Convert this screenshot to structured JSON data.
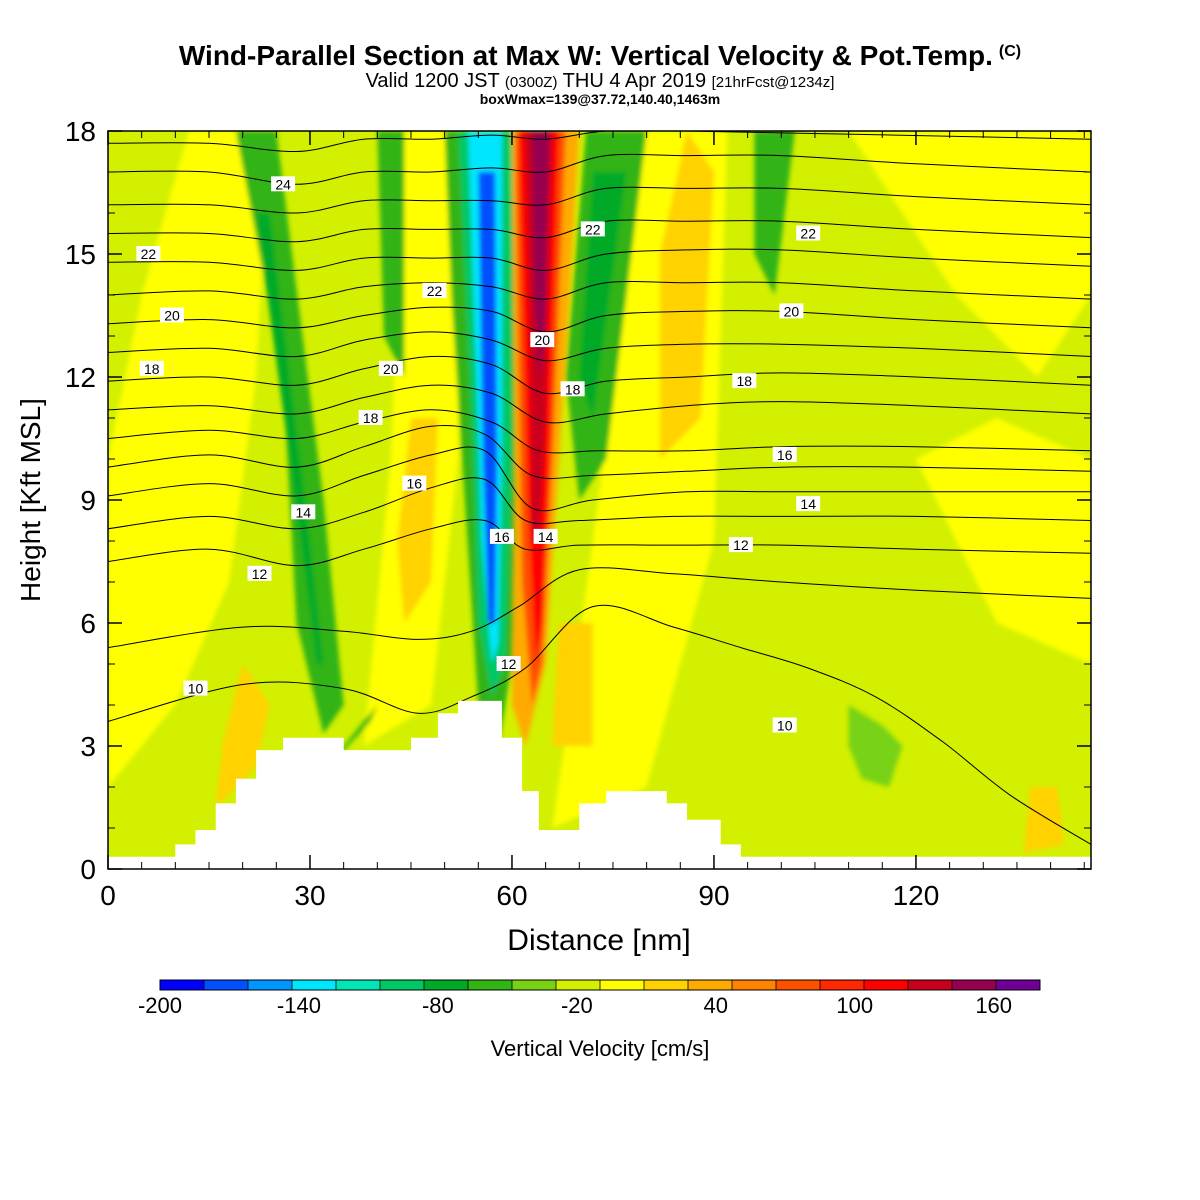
{
  "title": {
    "main": "Wind-Parallel Section at Max W: Vertical Velocity & Pot.Temp.",
    "copyright": "(C)",
    "valid_prefix": "Valid 1200 JST",
    "utc": "(0300Z)",
    "valid_date": "THU 4 Apr 2019",
    "forecast": "[21hrFcst@1234z]",
    "box_info": "boxWmax=139@37.72,140.40,1463m"
  },
  "chart_data": {
    "type": "heatmap",
    "xlabel": "Distance [nm]",
    "ylabel": "Height [Kft MSL]",
    "xlim": [
      0,
      146
    ],
    "ylim": [
      0,
      18
    ],
    "x_ticks": [
      0,
      30,
      60,
      90,
      120
    ],
    "y_ticks": [
      0,
      3,
      6,
      9,
      12,
      15,
      18
    ],
    "grid": false,
    "colorbar": {
      "label": "Vertical Velocity [cm/s]",
      "bounds": [
        -200,
        180
      ],
      "step": 20,
      "tick_values": [
        -200,
        -140,
        -80,
        -20,
        40,
        100,
        160
      ],
      "colors": [
        "#0000ff",
        "#0050ff",
        "#0096ff",
        "#00e6ff",
        "#00e6b4",
        "#00c864",
        "#00aa28",
        "#32b414",
        "#78d214",
        "#d2f000",
        "#ffff00",
        "#ffd200",
        "#ffaa00",
        "#ff8200",
        "#ff5000",
        "#ff2800",
        "#ff0000",
        "#c8001e",
        "#960050",
        "#6e0096"
      ]
    },
    "terrain_profile_kft": [
      [
        0,
        0.3
      ],
      [
        10,
        0.3
      ],
      [
        10,
        0.6
      ],
      [
        13,
        0.6
      ],
      [
        13,
        0.95
      ],
      [
        16,
        0.95
      ],
      [
        16,
        1.6
      ],
      [
        19,
        1.6
      ],
      [
        19,
        2.2
      ],
      [
        22,
        2.2
      ],
      [
        22,
        2.9
      ],
      [
        26,
        2.9
      ],
      [
        26,
        3.2
      ],
      [
        35,
        3.2
      ],
      [
        35,
        2.9
      ],
      [
        45,
        2.9
      ],
      [
        45,
        3.2
      ],
      [
        49,
        3.2
      ],
      [
        49,
        3.8
      ],
      [
        52,
        3.8
      ],
      [
        52,
        4.1
      ],
      [
        58.5,
        4.1
      ],
      [
        58.5,
        3.2
      ],
      [
        61.5,
        3.2
      ],
      [
        61.5,
        1.9
      ],
      [
        64,
        1.9
      ],
      [
        64,
        0.95
      ],
      [
        70,
        0.95
      ],
      [
        70,
        1.6
      ],
      [
        74,
        1.6
      ],
      [
        74,
        1.9
      ],
      [
        83,
        1.9
      ],
      [
        83,
        1.6
      ],
      [
        86,
        1.6
      ],
      [
        86,
        1.2
      ],
      [
        91,
        1.2
      ],
      [
        91,
        0.6
      ],
      [
        94,
        0.6
      ],
      [
        94,
        0.3
      ],
      [
        146,
        0.3
      ]
    ],
    "velocity_features": [
      {
        "kind": "updraft",
        "x": 64.5,
        "z": 14.5,
        "value_cm_s": 175
      },
      {
        "kind": "downdraft",
        "x": 57.5,
        "z": 11.5,
        "value_cm_s": -150
      },
      {
        "kind": "downdraft",
        "x": 31,
        "z": 10,
        "value_cm_s": -65
      },
      {
        "kind": "updraft",
        "x": 87,
        "z": 15,
        "value_cm_s": 45
      },
      {
        "kind": "downdraft",
        "x": 115,
        "z": 3.4,
        "value_cm_s": -40
      }
    ],
    "pot_temp_contours": [
      {
        "level": 10,
        "points": [
          [
            0,
            3.6
          ],
          [
            20,
            4.5
          ],
          [
            35,
            4.4
          ],
          [
            46,
            3.8
          ],
          [
            54,
            4.2
          ],
          [
            62,
            4.9
          ],
          [
            72,
            6.4
          ],
          [
            84,
            5.9
          ],
          [
            94,
            5.4
          ],
          [
            104,
            4.9
          ],
          [
            114,
            4.2
          ],
          [
            124,
            3.1
          ],
          [
            134,
            1.8
          ],
          [
            146,
            0.6
          ]
        ]
      },
      {
        "level": 11,
        "points": [
          [
            0,
            5.4
          ],
          [
            20,
            5.9
          ],
          [
            35,
            5.8
          ],
          [
            46,
            5.6
          ],
          [
            54,
            5.8
          ],
          [
            61,
            6.4
          ],
          [
            70,
            7.3
          ],
          [
            84,
            7.2
          ],
          [
            100,
            7.0
          ],
          [
            120,
            6.8
          ],
          [
            146,
            6.6
          ]
        ]
      },
      {
        "level": 12,
        "points": [
          [
            0,
            7.5
          ],
          [
            15,
            7.8
          ],
          [
            28,
            7.4
          ],
          [
            38,
            7.8
          ],
          [
            48,
            8.3
          ],
          [
            56,
            8.5
          ],
          [
            62,
            7.8
          ],
          [
            70,
            7.9
          ],
          [
            84,
            7.9
          ],
          [
            100,
            7.9
          ],
          [
            120,
            7.8
          ],
          [
            146,
            7.7
          ]
        ]
      },
      {
        "level": 13,
        "points": [
          [
            0,
            8.3
          ],
          [
            15,
            8.6
          ],
          [
            28,
            8.3
          ],
          [
            38,
            8.7
          ],
          [
            48,
            9.3
          ],
          [
            56,
            9.5
          ],
          [
            62,
            8.5
          ],
          [
            70,
            8.5
          ],
          [
            84,
            8.6
          ],
          [
            100,
            8.6
          ],
          [
            120,
            8.6
          ],
          [
            146,
            8.5
          ]
        ]
      },
      {
        "level": 14,
        "points": [
          [
            0,
            9.1
          ],
          [
            15,
            9.4
          ],
          [
            28,
            9.1
          ],
          [
            38,
            9.6
          ],
          [
            48,
            10.1
          ],
          [
            56,
            10.2
          ],
          [
            63,
            8.8
          ],
          [
            72,
            9.0
          ],
          [
            86,
            9.2
          ],
          [
            100,
            9.2
          ],
          [
            120,
            9.2
          ],
          [
            146,
            9.2
          ]
        ]
      },
      {
        "level": 15,
        "points": [
          [
            0,
            9.8
          ],
          [
            15,
            10.1
          ],
          [
            28,
            9.8
          ],
          [
            38,
            10.3
          ],
          [
            48,
            10.8
          ],
          [
            56,
            10.6
          ],
          [
            63,
            9.6
          ],
          [
            72,
            9.6
          ],
          [
            86,
            9.7
          ],
          [
            100,
            9.8
          ],
          [
            120,
            9.8
          ],
          [
            146,
            9.7
          ]
        ]
      },
      {
        "level": 16,
        "points": [
          [
            0,
            10.5
          ],
          [
            15,
            10.7
          ],
          [
            28,
            10.5
          ],
          [
            38,
            10.9
          ],
          [
            48,
            11.2
          ],
          [
            57,
            10.9
          ],
          [
            64,
            10.2
          ],
          [
            73,
            10.2
          ],
          [
            86,
            10.2
          ],
          [
            100,
            10.3
          ],
          [
            120,
            10.3
          ],
          [
            146,
            10.2
          ]
        ]
      },
      {
        "level": 17,
        "points": [
          [
            0,
            11.2
          ],
          [
            15,
            11.3
          ],
          [
            28,
            11.1
          ],
          [
            38,
            11.5
          ],
          [
            48,
            11.8
          ],
          [
            57,
            11.6
          ],
          [
            65,
            10.9
          ],
          [
            74,
            11.1
          ],
          [
            86,
            11.3
          ],
          [
            100,
            11.4
          ],
          [
            120,
            11.3
          ],
          [
            146,
            11.1
          ]
        ]
      },
      {
        "level": 18,
        "points": [
          [
            0,
            11.9
          ],
          [
            15,
            12.0
          ],
          [
            28,
            11.8
          ],
          [
            38,
            12.2
          ],
          [
            48,
            12.5
          ],
          [
            57,
            12.3
          ],
          [
            65,
            11.6
          ],
          [
            74,
            11.9
          ],
          [
            86,
            12.0
          ],
          [
            100,
            12.1
          ],
          [
            120,
            12.0
          ],
          [
            146,
            11.8
          ]
        ]
      },
      {
        "level": 19,
        "points": [
          [
            0,
            12.6
          ],
          [
            15,
            12.7
          ],
          [
            28,
            12.5
          ],
          [
            38,
            12.9
          ],
          [
            48,
            13.1
          ],
          [
            57,
            12.9
          ],
          [
            65,
            12.4
          ],
          [
            74,
            12.7
          ],
          [
            86,
            12.8
          ],
          [
            100,
            12.8
          ],
          [
            120,
            12.7
          ],
          [
            146,
            12.5
          ]
        ]
      },
      {
        "level": 20,
        "points": [
          [
            0,
            13.3
          ],
          [
            15,
            13.4
          ],
          [
            28,
            13.2
          ],
          [
            38,
            13.5
          ],
          [
            48,
            13.7
          ],
          [
            57,
            13.6
          ],
          [
            65,
            13.1
          ],
          [
            74,
            13.5
          ],
          [
            86,
            13.6
          ],
          [
            100,
            13.6
          ],
          [
            120,
            13.4
          ],
          [
            146,
            13.2
          ]
        ]
      },
      {
        "level": 21,
        "points": [
          [
            0,
            14.0
          ],
          [
            15,
            14.1
          ],
          [
            28,
            13.9
          ],
          [
            38,
            14.2
          ],
          [
            48,
            14.3
          ],
          [
            57,
            14.2
          ],
          [
            65,
            13.9
          ],
          [
            74,
            14.3
          ],
          [
            86,
            14.3
          ],
          [
            100,
            14.3
          ],
          [
            120,
            14.1
          ],
          [
            146,
            13.9
          ]
        ]
      },
      {
        "level": 22,
        "points": [
          [
            0,
            14.8
          ],
          [
            15,
            14.8
          ],
          [
            28,
            14.6
          ],
          [
            38,
            14.9
          ],
          [
            48,
            14.9
          ],
          [
            57,
            14.9
          ],
          [
            65,
            14.6
          ],
          [
            74,
            15.0
          ],
          [
            86,
            15.1
          ],
          [
            100,
            15.1
          ],
          [
            120,
            14.9
          ],
          [
            146,
            14.7
          ]
        ]
      },
      {
        "level": 23,
        "points": [
          [
            0,
            15.5
          ],
          [
            15,
            15.5
          ],
          [
            28,
            15.3
          ],
          [
            38,
            15.6
          ],
          [
            48,
            15.6
          ],
          [
            57,
            15.6
          ],
          [
            65,
            15.4
          ],
          [
            74,
            15.8
          ],
          [
            86,
            15.8
          ],
          [
            100,
            15.8
          ],
          [
            120,
            15.6
          ],
          [
            146,
            15.4
          ]
        ]
      },
      {
        "level": 24,
        "points": [
          [
            0,
            16.2
          ],
          [
            15,
            16.2
          ],
          [
            28,
            16.0
          ],
          [
            38,
            16.3
          ],
          [
            48,
            16.3
          ],
          [
            57,
            16.3
          ],
          [
            65,
            16.2
          ],
          [
            74,
            16.6
          ],
          [
            86,
            16.6
          ],
          [
            100,
            16.6
          ],
          [
            120,
            16.4
          ],
          [
            146,
            16.2
          ]
        ]
      },
      {
        "level": 25,
        "points": [
          [
            0,
            17.0
          ],
          [
            15,
            17.0
          ],
          [
            28,
            16.7
          ],
          [
            38,
            17.0
          ],
          [
            48,
            17.0
          ],
          [
            57,
            17.1
          ],
          [
            65,
            17.0
          ],
          [
            74,
            17.4
          ],
          [
            86,
            17.4
          ],
          [
            100,
            17.4
          ],
          [
            120,
            17.2
          ],
          [
            146,
            17.0
          ]
        ]
      },
      {
        "level": 26,
        "points": [
          [
            0,
            17.7
          ],
          [
            15,
            17.7
          ],
          [
            28,
            17.5
          ],
          [
            38,
            17.8
          ],
          [
            48,
            17.8
          ],
          [
            57,
            17.9
          ],
          [
            65,
            17.8
          ],
          [
            74,
            18.0
          ],
          [
            86,
            18.0
          ],
          [
            146,
            17.8
          ]
        ]
      }
    ],
    "contour_labels": [
      {
        "text": "24",
        "x": 26,
        "z": 16.7
      },
      {
        "text": "22",
        "x": 6,
        "z": 15.0
      },
      {
        "text": "20",
        "x": 9.5,
        "z": 13.5
      },
      {
        "text": "18",
        "x": 6.5,
        "z": 12.2
      },
      {
        "text": "22",
        "x": 48.5,
        "z": 14.1
      },
      {
        "text": "20",
        "x": 42,
        "z": 12.2
      },
      {
        "text": "18",
        "x": 39,
        "z": 11.0
      },
      {
        "text": "16",
        "x": 45.5,
        "z": 9.4
      },
      {
        "text": "14",
        "x": 29,
        "z": 8.7
      },
      {
        "text": "12",
        "x": 22.5,
        "z": 7.2
      },
      {
        "text": "10",
        "x": 13,
        "z": 4.4
      },
      {
        "text": "22",
        "x": 72,
        "z": 15.6
      },
      {
        "text": "20",
        "x": 64.5,
        "z": 12.9
      },
      {
        "text": "18",
        "x": 69,
        "z": 11.7
      },
      {
        "text": "16",
        "x": 58.5,
        "z": 8.1
      },
      {
        "text": "14",
        "x": 65,
        "z": 8.1
      },
      {
        "text": "12",
        "x": 59.5,
        "z": 5.0
      },
      {
        "text": "22",
        "x": 104,
        "z": 15.5
      },
      {
        "text": "20",
        "x": 101.5,
        "z": 13.6
      },
      {
        "text": "18",
        "x": 94.5,
        "z": 11.9
      },
      {
        "text": "16",
        "x": 100.5,
        "z": 10.1
      },
      {
        "text": "14",
        "x": 104,
        "z": 8.9
      },
      {
        "text": "12",
        "x": 94,
        "z": 7.9
      },
      {
        "text": "10",
        "x": 100.5,
        "z": 3.5
      }
    ]
  }
}
